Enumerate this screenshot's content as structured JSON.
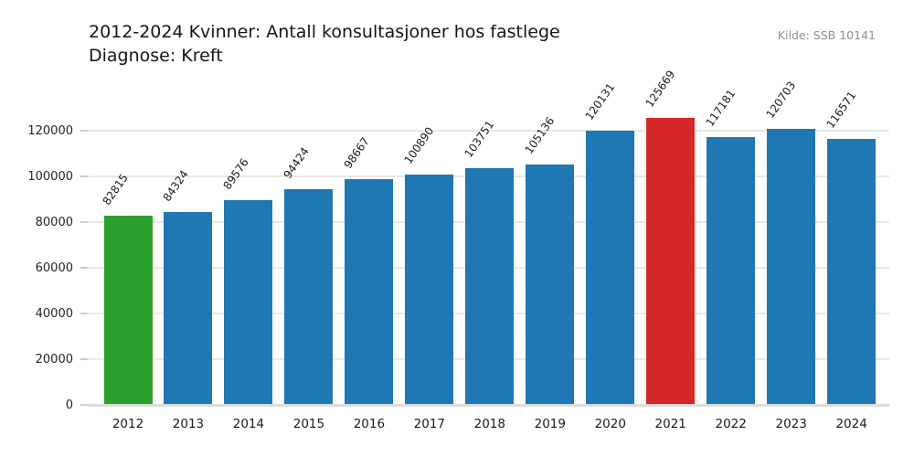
{
  "header": {
    "title_line1": "2012-2024 Kvinner: Antall konsultasjoner hos fastlege",
    "title_line2": "Diagnose: Kreft",
    "source": "Kilde: SSB 10141"
  },
  "chart_data": {
    "type": "bar",
    "title": "2012-2024 Kvinner: Antall konsultasjoner hos fastlege\nDiagnose: Kreft",
    "source": "Kilde: SSB 10141",
    "categories": [
      "2012",
      "2013",
      "2014",
      "2015",
      "2016",
      "2017",
      "2018",
      "2019",
      "2020",
      "2021",
      "2022",
      "2023",
      "2024"
    ],
    "values": [
      82815,
      84324,
      89576,
      94424,
      98667,
      100890,
      103751,
      105136,
      120131,
      125669,
      117181,
      120703,
      116571
    ],
    "bar_colors": [
      "#2ca02c",
      "#1f77b4",
      "#1f77b4",
      "#1f77b4",
      "#1f77b4",
      "#1f77b4",
      "#1f77b4",
      "#1f77b4",
      "#1f77b4",
      "#d62728",
      "#1f77b4",
      "#1f77b4",
      "#1f77b4"
    ],
    "default_bar_color": "#1f77b4",
    "highlight_colors": {
      "2012": "#2ca02c",
      "2021": "#d62728"
    },
    "xlabel": "",
    "ylabel": "",
    "yticks": [
      0,
      20000,
      40000,
      60000,
      80000,
      100000,
      120000
    ],
    "ylim": [
      0,
      130000
    ],
    "grid": "horizontal",
    "legend": "none",
    "value_labels": "above-bars, rotated"
  }
}
